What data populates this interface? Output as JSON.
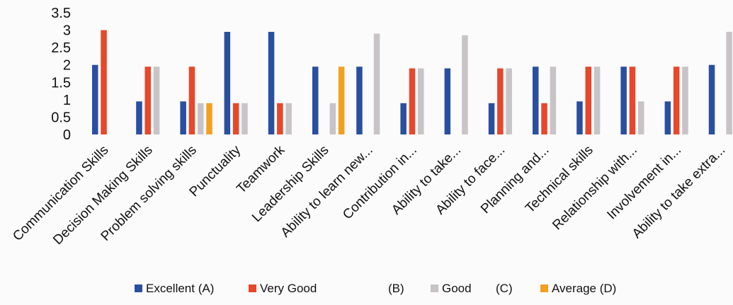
{
  "chart_data": {
    "type": "bar",
    "title": "",
    "xlabel": "",
    "ylabel": "",
    "ylim": [
      0,
      3.5
    ],
    "yticks": [
      "0",
      "0.5",
      "1",
      "1.5",
      "2",
      "2.5",
      "3",
      "3.5"
    ],
    "grid": false,
    "legend_position": "bottom",
    "categories": [
      "Communication Skills",
      "Decision Making Skills",
      "Problem solving skills",
      "Punctuality",
      "Teamwork",
      "Leadership Skills",
      "Ability to learn new...",
      "Contribution in...",
      "Ability to take...",
      "Ability to face...",
      "Planning and...",
      "Technical skills",
      "Relationship with...",
      "Involvement in...",
      "Ability to take extra..."
    ],
    "series": [
      {
        "name": "Excellent (A)",
        "color": "#2a4fa0",
        "values": [
          2,
          0.95,
          0.95,
          2.95,
          2.95,
          1.95,
          1.95,
          0.9,
          1.9,
          0.9,
          1.95,
          0.95,
          1.95,
          0.95,
          2
        ]
      },
      {
        "name": "Very Good",
        "color": "#e8472a",
        "values": [
          3,
          1.95,
          1.95,
          0.9,
          0.9,
          0,
          0,
          1.9,
          0,
          1.9,
          0.9,
          1.95,
          1.95,
          1.95,
          0
        ]
      },
      {
        "name": "Good",
        "color": "#c8c3c6",
        "values": [
          0,
          1.95,
          0.9,
          0.9,
          0.9,
          0.9,
          2.9,
          1.9,
          2.85,
          1.9,
          1.95,
          1.95,
          0.95,
          1.95,
          2.95
        ]
      },
      {
        "name": "Average (D)",
        "color": "#f2a020",
        "values": [
          0,
          0,
          0.9,
          0,
          0,
          1.95,
          0,
          0,
          0,
          0,
          0,
          0,
          0,
          0,
          0
        ]
      }
    ],
    "legend_extra": [
      "(B)",
      "(C)"
    ]
  }
}
